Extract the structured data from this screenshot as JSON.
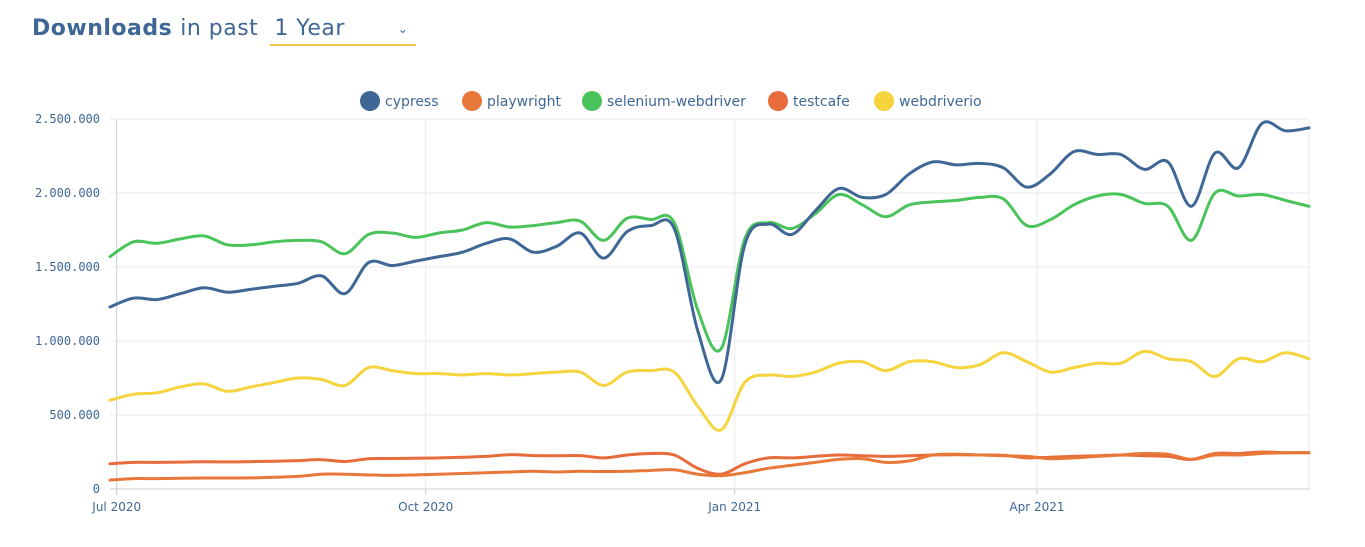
{
  "header": {
    "title_strong": "Downloads",
    "title_light": "in past",
    "period": "1 Year"
  },
  "chart_data": {
    "type": "line",
    "x_start": "2020-06-29",
    "x": [
      "2020-06-29",
      "2020-07-06",
      "2020-07-13",
      "2020-07-20",
      "2020-07-27",
      "2020-08-03",
      "2020-08-10",
      "2020-08-17",
      "2020-08-24",
      "2020-08-31",
      "2020-09-07",
      "2020-09-14",
      "2020-09-21",
      "2020-09-28",
      "2020-10-05",
      "2020-10-12",
      "2020-10-19",
      "2020-10-26",
      "2020-11-02",
      "2020-11-09",
      "2020-11-16",
      "2020-11-23",
      "2020-11-30",
      "2020-12-07",
      "2020-12-14",
      "2020-12-21",
      "2020-12-28",
      "2021-01-04",
      "2021-01-11",
      "2021-01-18",
      "2021-01-25",
      "2021-02-01",
      "2021-02-08",
      "2021-02-15",
      "2021-02-22",
      "2021-03-01",
      "2021-03-08",
      "2021-03-15",
      "2021-03-22",
      "2021-03-29",
      "2021-04-05",
      "2021-04-12",
      "2021-04-19",
      "2021-04-26",
      "2021-05-03",
      "2021-05-10",
      "2021-05-17",
      "2021-05-24",
      "2021-05-31",
      "2021-06-07",
      "2021-06-14",
      "2021-06-21"
    ],
    "series": [
      {
        "name": "cypress",
        "color": "#3f6796",
        "values": [
          1230000,
          1290000,
          1280000,
          1320000,
          1360000,
          1330000,
          1350000,
          1370000,
          1390000,
          1440000,
          1320000,
          1530000,
          1510000,
          1540000,
          1570000,
          1600000,
          1660000,
          1690000,
          1600000,
          1640000,
          1730000,
          1560000,
          1740000,
          1780000,
          1760000,
          1070000,
          740000,
          1650000,
          1790000,
          1720000,
          1880000,
          2030000,
          1970000,
          1990000,
          2130000,
          2210000,
          2190000,
          2200000,
          2170000,
          2040000,
          2130000,
          2280000,
          2260000,
          2260000,
          2160000,
          2210000,
          1910000,
          2270000,
          2170000,
          2470000,
          2420000,
          2440000
        ]
      },
      {
        "name": "playwright",
        "color": "#e8783a",
        "values": [
          60000,
          70000,
          70000,
          72000,
          74000,
          74000,
          75000,
          80000,
          85000,
          100000,
          100000,
          95000,
          92000,
          95000,
          100000,
          105000,
          110000,
          115000,
          120000,
          115000,
          120000,
          118000,
          120000,
          125000,
          130000,
          100000,
          90000,
          110000,
          140000,
          160000,
          180000,
          200000,
          205000,
          180000,
          190000,
          230000,
          235000,
          230000,
          225000,
          220000,
          205000,
          210000,
          220000,
          230000,
          240000,
          235000,
          200000,
          230000,
          230000,
          240000,
          245000,
          245000
        ]
      },
      {
        "name": "selenium-webdriver",
        "color": "#4bc35b",
        "values": [
          1570000,
          1670000,
          1660000,
          1690000,
          1710000,
          1650000,
          1650000,
          1670000,
          1680000,
          1670000,
          1590000,
          1720000,
          1730000,
          1700000,
          1730000,
          1750000,
          1800000,
          1770000,
          1780000,
          1800000,
          1810000,
          1680000,
          1830000,
          1820000,
          1800000,
          1210000,
          950000,
          1690000,
          1800000,
          1760000,
          1860000,
          1990000,
          1920000,
          1840000,
          1920000,
          1940000,
          1950000,
          1970000,
          1960000,
          1780000,
          1820000,
          1920000,
          1980000,
          1990000,
          1930000,
          1910000,
          1680000,
          2000000,
          1980000,
          1990000,
          1950000,
          1910000
        ]
      },
      {
        "name": "testcafe",
        "color": "#e86b3b",
        "values": [
          170000,
          180000,
          180000,
          182000,
          184000,
          183000,
          185000,
          188000,
          192000,
          198000,
          186000,
          205000,
          206000,
          208000,
          210000,
          215000,
          220000,
          232000,
          226000,
          225000,
          226000,
          210000,
          230000,
          240000,
          230000,
          140000,
          100000,
          170000,
          210000,
          210000,
          220000,
          230000,
          225000,
          220000,
          225000,
          230000,
          232000,
          230000,
          228000,
          210000,
          215000,
          220000,
          225000,
          230000,
          225000,
          220000,
          200000,
          240000,
          240000,
          250000,
          245000,
          245000
        ]
      },
      {
        "name": "webdriverio",
        "color": "#f5d43e",
        "values": [
          600000,
          640000,
          650000,
          690000,
          710000,
          660000,
          690000,
          720000,
          750000,
          740000,
          700000,
          820000,
          800000,
          780000,
          780000,
          770000,
          780000,
          770000,
          780000,
          790000,
          790000,
          700000,
          790000,
          800000,
          790000,
          560000,
          400000,
          720000,
          770000,
          760000,
          790000,
          850000,
          860000,
          800000,
          860000,
          860000,
          820000,
          840000,
          920000,
          860000,
          790000,
          820000,
          850000,
          850000,
          930000,
          880000,
          860000,
          760000,
          880000,
          860000,
          920000,
          880000
        ]
      }
    ],
    "y_ticks": [
      "0",
      "500.000",
      "1.000.000",
      "1.500.000",
      "2.000.000",
      "2.500.000"
    ],
    "x_ticks": [
      {
        "label": "Jul 2020",
        "date": "2020-07-01"
      },
      {
        "label": "Oct 2020",
        "date": "2020-10-01"
      },
      {
        "label": "Jan 2021",
        "date": "2021-01-01"
      },
      {
        "label": "Apr 2021",
        "date": "2021-04-01"
      }
    ],
    "ylim": [
      0,
      2500000
    ],
    "legend_position": "top-center",
    "grid": true
  }
}
